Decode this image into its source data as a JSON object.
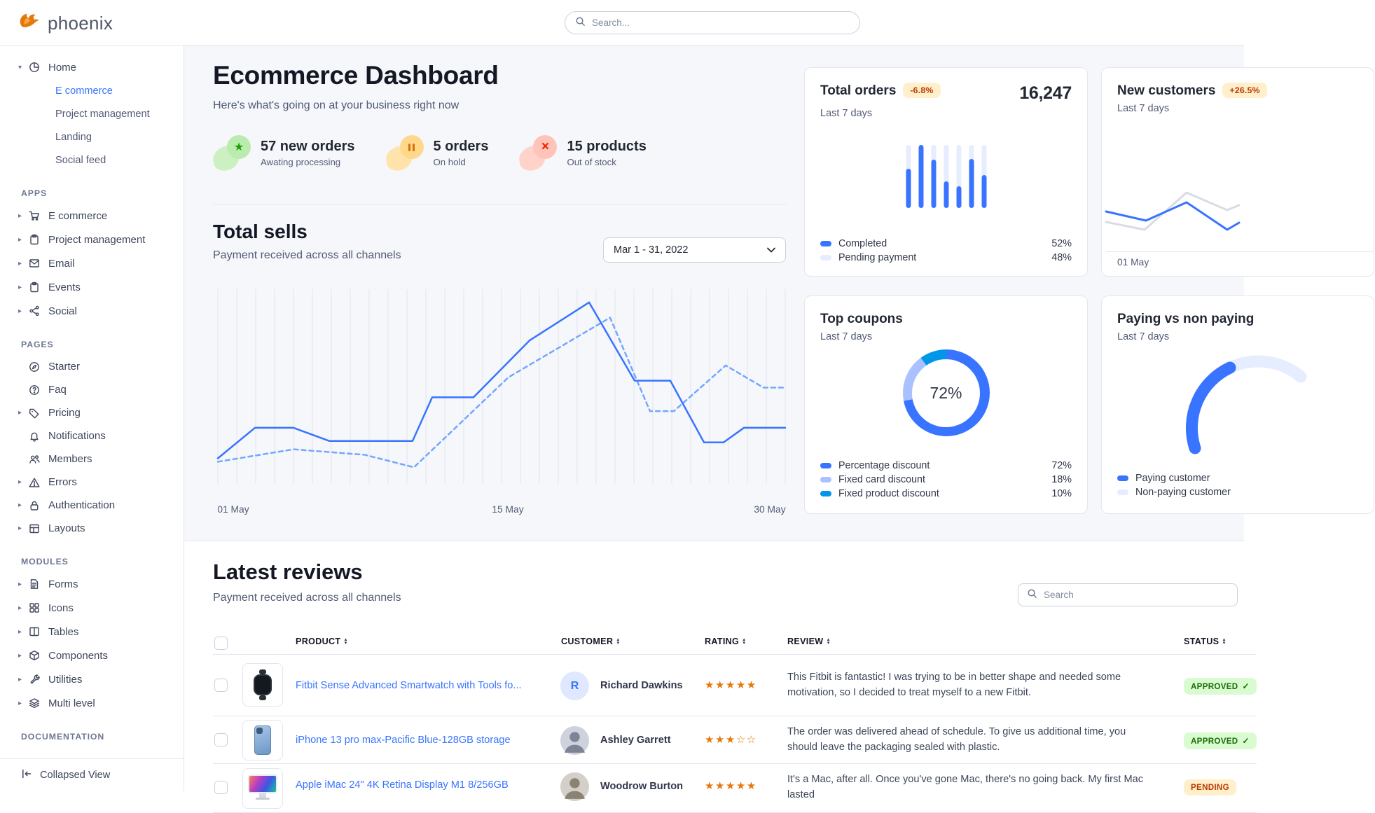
{
  "navbar": {
    "brand": "phoenix",
    "search_placeholder": "Search..."
  },
  "sidebar": {
    "home_label": "Home",
    "home_children": [
      "E commerce",
      "Project management",
      "Landing",
      "Social feed"
    ],
    "apps_label": "APPS",
    "apps": [
      "E commerce",
      "Project management",
      "Email",
      "Events",
      "Social"
    ],
    "pages_label": "PAGES",
    "pages": [
      "Starter",
      "Faq",
      "Pricing",
      "Notifications",
      "Members",
      "Errors",
      "Authentication",
      "Layouts"
    ],
    "modules_label": "MODULES",
    "modules": [
      "Forms",
      "Icons",
      "Tables",
      "Components",
      "Utilities",
      "Multi level"
    ],
    "documentation_label": "DOCUMENTATION",
    "collapsed_view": "Collapsed View"
  },
  "header": {
    "title": "Ecommerce Dashboard",
    "subtitle": "Here's what's going on at your business right now"
  },
  "stats": [
    {
      "value": "57 new orders",
      "label": "Awating processing",
      "icon": "star"
    },
    {
      "value": "5 orders",
      "label": "On hold",
      "icon": "pause"
    },
    {
      "value": "15 products",
      "label": "Out of stock",
      "icon": "x"
    }
  ],
  "total_sells": {
    "title": "Total sells",
    "subtitle": "Payment received across all channels",
    "date_range": "Mar 1 - 31, 2022",
    "chart_data": {
      "type": "line",
      "xlabels": [
        "01 May",
        "15 May",
        "30 May"
      ],
      "grid": "vertical",
      "series": [
        {
          "name": "previous-period",
          "style": "dashed",
          "color": "#74a7ff",
          "points": [
            [
              0,
              249
            ],
            [
              108,
              231
            ],
            [
              210,
              239
            ],
            [
              280,
              257
            ],
            [
              415,
              127
            ],
            [
              560,
              41
            ],
            [
              617,
              176
            ],
            [
              651,
              176
            ],
            [
              725,
              110
            ],
            [
              779,
              142
            ],
            [
              810,
              142
            ]
          ]
        },
        {
          "name": "current-period",
          "style": "solid",
          "color": "#3874ff",
          "points": [
            [
              0,
              244
            ],
            [
              53,
              200
            ],
            [
              108,
              200
            ],
            [
              159,
              219
            ],
            [
              278,
              219
            ],
            [
              306,
              156
            ],
            [
              365,
              156
            ],
            [
              445,
              74
            ],
            [
              530,
              19
            ],
            [
              595,
              132
            ],
            [
              646,
              132
            ],
            [
              694,
              221
            ],
            [
              722,
              221
            ],
            [
              751,
              200
            ],
            [
              810,
              200
            ]
          ]
        }
      ]
    }
  },
  "total_orders": {
    "title": "Total orders",
    "badge": "-6.8%",
    "subtitle": "Last 7 days",
    "value": "16,247",
    "chart_data": {
      "type": "bar",
      "unit": "percent-fill",
      "values": [
        62,
        100,
        77,
        42,
        35,
        78,
        52
      ]
    },
    "legend": [
      {
        "label": "Completed",
        "value": "52%",
        "color": "#3874ff"
      },
      {
        "label": "Pending payment",
        "value": "48%",
        "color": "#e5edff"
      }
    ]
  },
  "new_customers": {
    "title": "New customers",
    "badge": "+26.5%",
    "subtitle": "Last 7 days",
    "xlabel": "01 May",
    "chart_data": {
      "type": "line",
      "series": [
        {
          "name": "previous",
          "style": "solid",
          "color": "#d8dce5",
          "points": [
            [
              0,
              62
            ],
            [
              55,
              73
            ],
            [
              115,
              20
            ],
            [
              173,
              45
            ],
            [
              190,
              38
            ]
          ]
        },
        {
          "name": "current",
          "style": "solid",
          "color": "#3874ff",
          "points": [
            [
              0,
              47
            ],
            [
              57,
              60
            ],
            [
              115,
              34
            ],
            [
              173,
              73
            ],
            [
              190,
              63
            ]
          ]
        }
      ]
    }
  },
  "top_coupons": {
    "title": "Top coupons",
    "subtitle": "Last 7 days",
    "center_value": "72%",
    "chart_data": {
      "type": "pie",
      "slices": [
        {
          "label": "Percentage discount",
          "value": 72,
          "display": "72%",
          "color": "#3874ff"
        },
        {
          "label": "Fixed card discount",
          "value": 18,
          "display": "18%",
          "color": "#a9c1ff"
        },
        {
          "label": "Fixed product discount",
          "value": 10,
          "display": "10%",
          "color": "#0097eb"
        }
      ]
    }
  },
  "paying": {
    "title": "Paying vs non paying",
    "subtitle": "Last 7 days",
    "legend": [
      {
        "label": "Paying customer",
        "color": "#3874ff"
      },
      {
        "label": "Non-paying customer",
        "color": "#e5edff"
      }
    ]
  },
  "reviews": {
    "title": "Latest reviews",
    "subtitle": "Payment received across all channels",
    "search_placeholder": "Search",
    "columns": [
      "PRODUCT",
      "CUSTOMER",
      "RATING",
      "REVIEW",
      "STATUS"
    ],
    "rows": [
      {
        "product": "Fitbit Sense Advanced Smartwatch with Tools fo...",
        "customer": "Richard Dawkins",
        "avatar_initial": "R",
        "rating": 5,
        "review": "This Fitbit is fantastic! I was trying to be in better shape and needed some motivation, so I decided to treat myself to a new Fitbit.",
        "status": "APPROVED",
        "status_type": "success"
      },
      {
        "product": "iPhone 13 pro max-Pacific Blue-128GB storage",
        "customer": "Ashley Garrett",
        "rating": 3,
        "review": "The order was delivered ahead of schedule. To give us additional time, you should leave the packaging sealed with plastic.",
        "status": "APPROVED",
        "status_type": "success"
      },
      {
        "product": "Apple iMac 24\" 4K Retina Display M1 8/256GB",
        "customer": "Woodrow Burton",
        "rating": 5,
        "review": "It's a Mac, after all. Once you've gone Mac, there's no going back. My first Mac lasted",
        "status": "PENDING",
        "status_type": "warning"
      }
    ]
  },
  "colors": {
    "primary": "#3874ff",
    "primary_light": "#e5edff",
    "periwinkle": "#a9c1ff",
    "info": "#0097eb",
    "warning": "#e5780b",
    "warning_bg": "#ffefca",
    "warning_text": "#bc3803",
    "success": "#25b003",
    "success_bg": "#d9fbd0",
    "success_text": "#1c6c09",
    "danger": "#ed2000",
    "danger_bg": "#ffe0db",
    "star": "#e5780b"
  }
}
